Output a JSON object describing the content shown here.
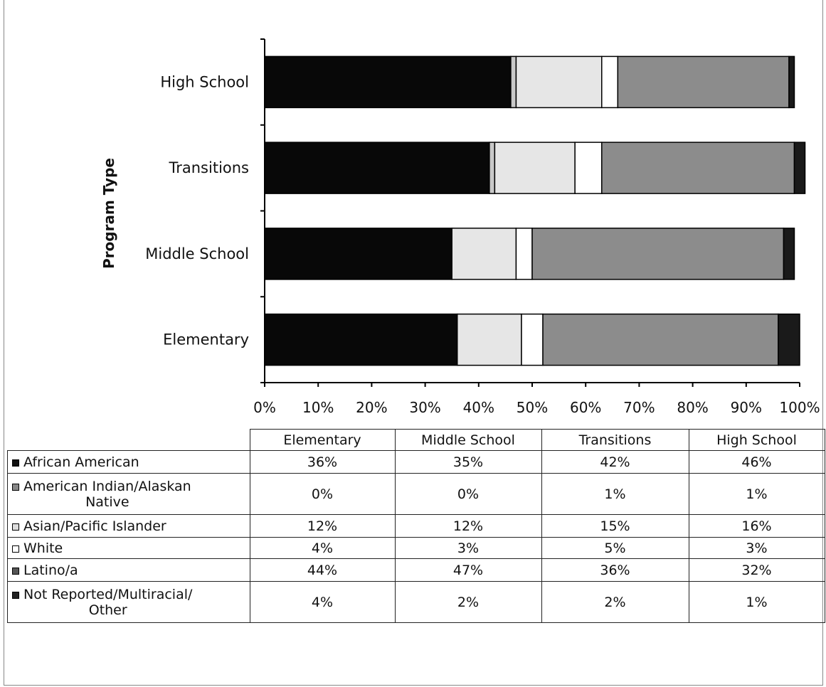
{
  "chart_data": {
    "type": "stacked-bar-horizontal-100",
    "ylabel": "Program Type",
    "x_ticks": [
      "0%",
      "10%",
      "20%",
      "30%",
      "40%",
      "50%",
      "60%",
      "70%",
      "80%",
      "90%",
      "100%"
    ],
    "xlim": [
      0,
      100
    ],
    "categories": [
      "Elementary",
      "Middle School",
      "Transitions",
      "High School"
    ],
    "series": [
      {
        "name": "African American",
        "values": [
          36,
          35,
          42,
          46
        ],
        "color": "#080808"
      },
      {
        "name": "American Indian/Alaskan Native",
        "values": [
          0,
          0,
          1,
          1
        ],
        "color": "#c8c8c8"
      },
      {
        "name": "Asian/Pacific Islander",
        "values": [
          12,
          12,
          15,
          16
        ],
        "color": "#e6e6e6"
      },
      {
        "name": "White",
        "values": [
          4,
          3,
          5,
          3
        ],
        "color": "#ffffff"
      },
      {
        "name": "Latino/a",
        "values": [
          44,
          47,
          36,
          32
        ],
        "color": "#8c8c8c"
      },
      {
        "name": "Not Reported/Multiracial/ Other",
        "values": [
          4,
          2,
          2,
          1
        ],
        "color": "#1a1a1a"
      }
    ]
  },
  "table": {
    "columns": [
      "Elementary",
      "Middle School",
      "Transitions",
      "High School"
    ],
    "rows": [
      {
        "label_lines": [
          "African American"
        ],
        "swatch_color": "#111111",
        "cells": [
          "36%",
          "35%",
          "42%",
          "46%"
        ]
      },
      {
        "label_lines": [
          "American Indian/Alaskan",
          "Native"
        ],
        "swatch_color": "#888888",
        "cells": [
          "0%",
          "0%",
          "1%",
          "1%"
        ]
      },
      {
        "label_lines": [
          "Asian/Pacific Islander"
        ],
        "swatch_color": "#dddddd",
        "cells": [
          "12%",
          "12%",
          "15%",
          "16%"
        ]
      },
      {
        "label_lines": [
          "White"
        ],
        "swatch_color": "#ffffff",
        "cells": [
          "4%",
          "3%",
          "5%",
          "3%"
        ]
      },
      {
        "label_lines": [
          "Latino/a"
        ],
        "swatch_color": "#555555",
        "cells": [
          "44%",
          "47%",
          "36%",
          "32%"
        ]
      },
      {
        "label_lines": [
          "Not Reported/Multiracial/",
          "Other"
        ],
        "swatch_color": "#222222",
        "cells": [
          "4%",
          "2%",
          "2%",
          "1%"
        ]
      }
    ]
  }
}
